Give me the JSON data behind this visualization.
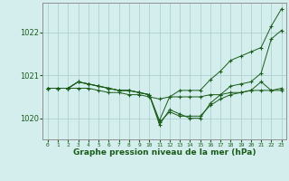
{
  "xlabel": "Graphe pression niveau de la mer (hPa)",
  "background_color": "#d4eeee",
  "grid_color": "#b0d0d0",
  "line_color": "#1a5c1a",
  "x_values": [
    0,
    1,
    2,
    3,
    4,
    5,
    6,
    7,
    8,
    9,
    10,
    11,
    12,
    13,
    14,
    15,
    16,
    17,
    18,
    19,
    20,
    21,
    22,
    23
  ],
  "line1": [
    1020.7,
    1020.7,
    1020.7,
    1020.7,
    1020.7,
    1020.65,
    1020.6,
    1020.6,
    1020.55,
    1020.55,
    1020.5,
    1020.45,
    1020.5,
    1020.5,
    1020.5,
    1020.5,
    1020.55,
    1020.55,
    1020.6,
    1020.6,
    1020.65,
    1020.65,
    1020.65,
    1020.7
  ],
  "line2": [
    1020.7,
    1020.7,
    1020.7,
    1020.85,
    1020.8,
    1020.75,
    1020.7,
    1020.65,
    1020.65,
    1020.6,
    1020.55,
    1019.9,
    1020.15,
    1020.05,
    1020.05,
    1020.05,
    1020.3,
    1020.45,
    1020.55,
    1020.6,
    1020.65,
    1020.85,
    1020.65,
    1020.65
  ],
  "line3": [
    1020.7,
    1020.7,
    1020.7,
    1020.85,
    1020.8,
    1020.75,
    1020.7,
    1020.65,
    1020.65,
    1020.6,
    1020.55,
    1019.85,
    1020.2,
    1020.1,
    1020.0,
    1020.0,
    1020.35,
    1020.55,
    1020.75,
    1020.8,
    1020.85,
    1021.05,
    1021.85,
    1022.05
  ],
  "line4": [
    1020.7,
    1020.7,
    1020.7,
    1020.85,
    1020.8,
    1020.75,
    1020.7,
    1020.65,
    1020.65,
    1020.6,
    1020.55,
    1019.95,
    1020.5,
    1020.65,
    1020.65,
    1020.65,
    1020.9,
    1021.1,
    1021.35,
    1021.45,
    1021.55,
    1021.65,
    1022.15,
    1022.55
  ],
  "ylim": [
    1019.5,
    1022.7
  ],
  "yticks": [
    1020,
    1021,
    1022
  ],
  "xlim": [
    -0.5,
    23.5
  ]
}
